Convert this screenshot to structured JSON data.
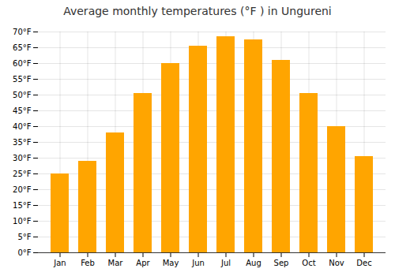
{
  "chart_data": {
    "type": "bar",
    "title": "Average monthly temperatures (°F ) in Ungureni",
    "categories": [
      "Jan",
      "Feb",
      "Mar",
      "Apr",
      "May",
      "Jun",
      "Jul",
      "Aug",
      "Sep",
      "Oct",
      "Nov",
      "Dec"
    ],
    "values": [
      25,
      29,
      38,
      50.5,
      60,
      65.5,
      68.5,
      67.5,
      61,
      50.5,
      40,
      30.5
    ],
    "color": "#FFA500",
    "ylim": [
      0,
      70
    ],
    "yticks": [
      {
        "value": 0,
        "label": "0°F"
      },
      {
        "value": 5,
        "label": "5°F"
      },
      {
        "value": 10,
        "label": "10°F"
      },
      {
        "value": 15,
        "label": "15°F"
      },
      {
        "value": 20,
        "label": "20°F"
      },
      {
        "value": 25,
        "label": "25°F"
      },
      {
        "value": 30,
        "label": "30°F"
      },
      {
        "value": 35,
        "label": "35°F"
      },
      {
        "value": 40,
        "label": "40°F"
      },
      {
        "value": 45,
        "label": "45°F"
      },
      {
        "value": 50,
        "label": "50°F"
      },
      {
        "value": 55,
        "label": "55°F"
      },
      {
        "value": 60,
        "label": "60°F"
      },
      {
        "value": 65,
        "label": "65°F"
      },
      {
        "value": 70,
        "label": "70°F"
      }
    ],
    "grid": true
  }
}
